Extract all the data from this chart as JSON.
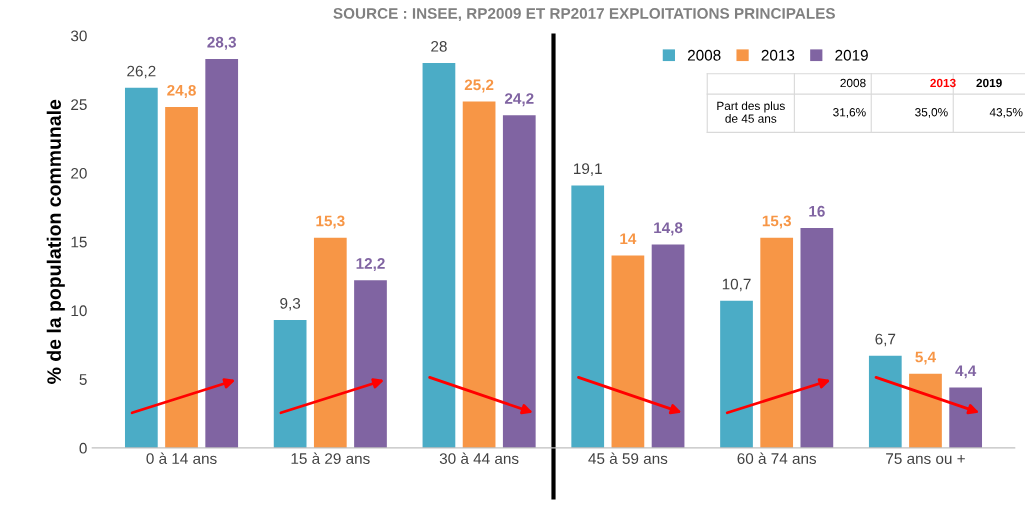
{
  "chart_data": {
    "type": "bar",
    "ylabel": "% de la population communale",
    "categories": [
      "0 à 14 ans",
      "15 à 29 ans",
      "30 à 44 ans",
      "45 à 59 ans",
      "60 à 74 ans",
      "75 ans ou +"
    ],
    "series": [
      {
        "name": "2008",
        "color": "#4bacc6",
        "values": [
          26.2,
          9.3,
          28,
          19.1,
          10.7,
          6.7
        ],
        "value_labels": [
          "26,2",
          "9,3",
          "28",
          "19,1",
          "10,7",
          "6,7"
        ]
      },
      {
        "name": "2013",
        "color": "#f79646",
        "values": [
          24.8,
          15.3,
          25.2,
          14,
          15.3,
          5.4
        ],
        "value_labels": [
          "24,8",
          "15,3",
          "25,2",
          "14",
          "15,3",
          "5,4"
        ]
      },
      {
        "name": "2019",
        "color": "#8064a2",
        "values": [
          28.3,
          12.2,
          24.2,
          14.8,
          16,
          4.4
        ],
        "value_labels": [
          "28,3",
          "12,2",
          "24,2",
          "14,8",
          "16",
          "4,4"
        ]
      }
    ],
    "ylim": [
      0,
      30
    ],
    "yticks": [
      0,
      5,
      10,
      15,
      20,
      25,
      30
    ],
    "grid": false,
    "legend": "top right",
    "annotations": [
      "SOURCE : INSEE, RP2009 ET RP2017 EXPLOITATIONS PRINCIPALES",
      "2008",
      "2013",
      "2019",
      "Part des plus\nde 45 ans",
      "31,6%",
      "35,0%",
      "43,5%"
    ]
  }
}
